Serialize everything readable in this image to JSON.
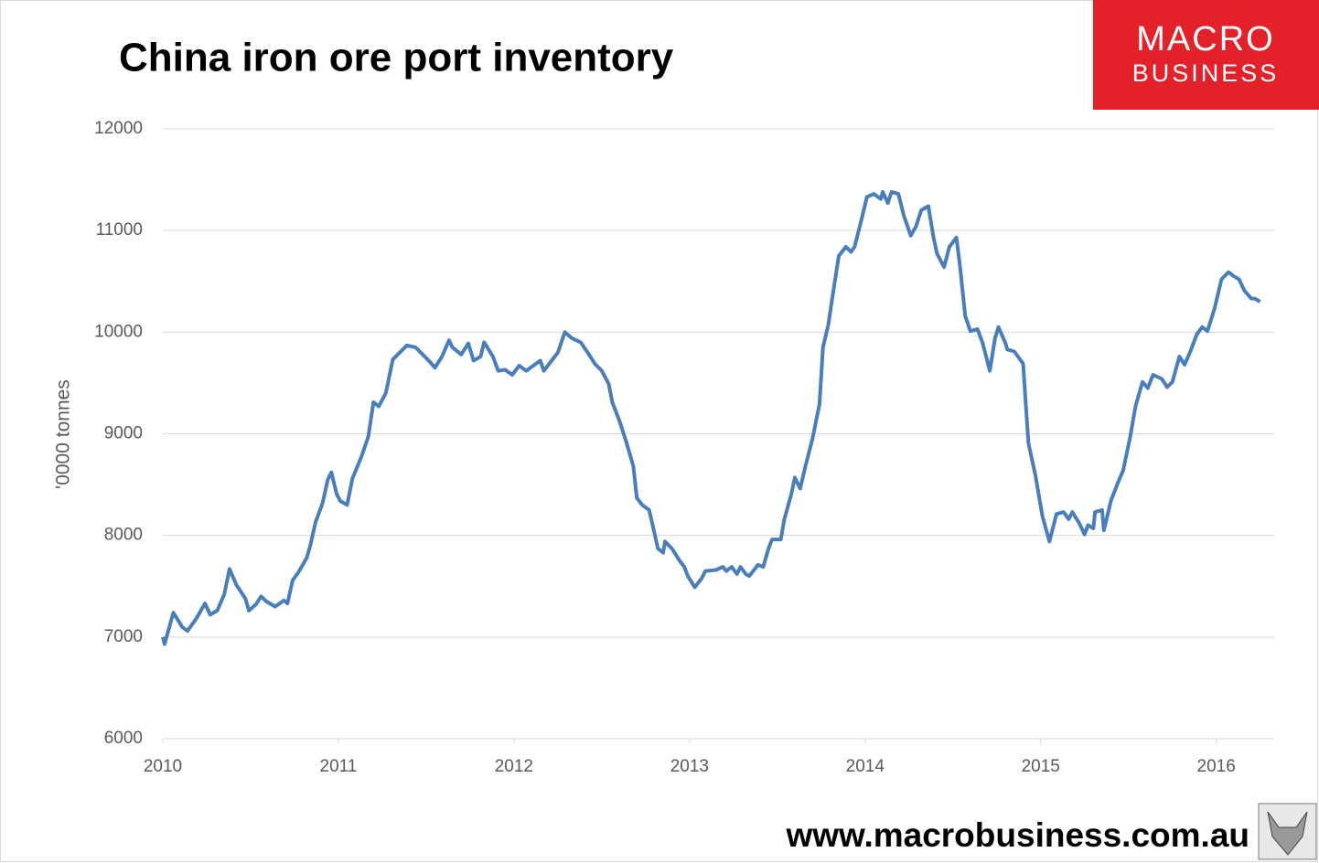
{
  "chart_data": {
    "type": "line",
    "title": "China iron ore port inventory",
    "y_label": "'0000 tonnes",
    "xlim": [
      2010,
      2016.33
    ],
    "xticks": [
      2010,
      2011,
      2012,
      2013,
      2014,
      2015,
      2016
    ],
    "ylim": [
      6000,
      12000
    ],
    "yticks": [
      6000,
      7000,
      8000,
      9000,
      10000,
      11000,
      12000
    ],
    "grid": true,
    "x": [
      2010.0,
      2010.01,
      2010.06,
      2010.11,
      2010.14,
      2010.19,
      2010.24,
      2010.27,
      2010.31,
      2010.35,
      2010.38,
      2010.42,
      2010.47,
      2010.49,
      2010.53,
      2010.56,
      2010.59,
      2010.64,
      2010.69,
      2010.71,
      2010.74,
      2010.77,
      2010.82,
      2010.84,
      2010.87,
      2010.91,
      2010.94,
      2010.96,
      2010.99,
      2011.01,
      2011.05,
      2011.08,
      2011.13,
      2011.17,
      2011.2,
      2011.23,
      2011.27,
      2011.31,
      2011.35,
      2011.39,
      2011.44,
      2011.48,
      2011.52,
      2011.55,
      2011.59,
      2011.63,
      2011.65,
      2011.7,
      2011.74,
      2011.77,
      2011.81,
      2011.83,
      2011.88,
      2011.91,
      2011.95,
      2011.99,
      2012.03,
      2012.07,
      2012.11,
      2012.15,
      2012.17,
      2012.21,
      2012.25,
      2012.29,
      2012.33,
      2012.38,
      2012.42,
      2012.46,
      2012.5,
      2012.54,
      2012.56,
      2012.6,
      2012.64,
      2012.68,
      2012.7,
      2012.73,
      2012.77,
      2012.79,
      2012.82,
      2012.85,
      2012.86,
      2012.9,
      2012.94,
      2012.97,
      2012.99,
      2013.03,
      2013.07,
      2013.09,
      2013.15,
      2013.19,
      2013.21,
      2013.24,
      2013.27,
      2013.29,
      2013.32,
      2013.34,
      2013.39,
      2013.42,
      2013.45,
      2013.47,
      2013.52,
      2013.54,
      2013.58,
      2013.6,
      2013.63,
      2013.66,
      2013.7,
      2013.74,
      2013.76,
      2013.79,
      2013.81,
      2013.85,
      2013.89,
      2013.92,
      2013.94,
      2013.98,
      2014.01,
      2014.05,
      2014.09,
      2014.1,
      2014.13,
      2014.15,
      2014.19,
      2014.22,
      2014.26,
      2014.29,
      2014.32,
      2014.36,
      2014.39,
      2014.41,
      2014.45,
      2014.48,
      2014.52,
      2014.54,
      2014.57,
      2014.6,
      2014.64,
      2014.67,
      2014.71,
      2014.74,
      2014.76,
      2014.8,
      2014.81,
      2014.85,
      2014.9,
      2014.93,
      2014.97,
      2015.01,
      2015.05,
      2015.09,
      2015.13,
      2015.16,
      2015.18,
      2015.22,
      2015.25,
      2015.27,
      2015.3,
      2015.31,
      2015.35,
      2015.36,
      2015.4,
      2015.44,
      2015.47,
      2015.51,
      2015.54,
      2015.58,
      2015.61,
      2015.64,
      2015.69,
      2015.72,
      2015.75,
      2015.79,
      2015.82,
      2015.85,
      2015.89,
      2015.92,
      2015.95,
      2015.99,
      2016.03,
      2016.07,
      2016.1,
      2016.13,
      2016.16,
      2016.2,
      2016.22,
      2016.25
    ],
    "series": [
      {
        "color": "#4a7ebb",
        "values": [
          7000,
          6930,
          7240,
          7100,
          7060,
          7180,
          7330,
          7220,
          7260,
          7420,
          7670,
          7510,
          7380,
          7260,
          7320,
          7400,
          7350,
          7300,
          7360,
          7330,
          7560,
          7630,
          7780,
          7900,
          8130,
          8320,
          8550,
          8620,
          8410,
          8340,
          8300,
          8560,
          8770,
          8970,
          9310,
          9270,
          9400,
          9730,
          9800,
          9870,
          9850,
          9780,
          9710,
          9650,
          9760,
          9920,
          9850,
          9780,
          9890,
          9720,
          9760,
          9900,
          9760,
          9620,
          9630,
          9580,
          9670,
          9620,
          9670,
          9720,
          9620,
          9710,
          9800,
          10000,
          9940,
          9900,
          9800,
          9690,
          9620,
          9490,
          9310,
          9130,
          8920,
          8680,
          8370,
          8300,
          8250,
          8100,
          7870,
          7830,
          7940,
          7870,
          7760,
          7690,
          7600,
          7490,
          7580,
          7650,
          7660,
          7690,
          7650,
          7690,
          7620,
          7690,
          7620,
          7600,
          7710,
          7690,
          7870,
          7960,
          7960,
          8160,
          8410,
          8570,
          8460,
          8680,
          8950,
          9290,
          9850,
          10070,
          10300,
          10750,
          10840,
          10790,
          10840,
          11110,
          11330,
          11360,
          11310,
          11380,
          11270,
          11380,
          11360,
          11150,
          10950,
          11040,
          11200,
          11240,
          10930,
          10770,
          10640,
          10840,
          10930,
          10660,
          10160,
          10010,
          10030,
          9890,
          9620,
          9940,
          10050,
          9890,
          9830,
          9810,
          9690,
          8910,
          8590,
          8190,
          7940,
          8210,
          8230,
          8160,
          8230,
          8120,
          8010,
          8100,
          8070,
          8230,
          8250,
          8050,
          8340,
          8520,
          8640,
          8970,
          9270,
          9510,
          9450,
          9580,
          9540,
          9460,
          9510,
          9760,
          9680,
          9800,
          9980,
          10050,
          10010,
          10230,
          10520,
          10590,
          10550,
          10520,
          10410,
          10330,
          10330,
          10300
        ]
      }
    ]
  },
  "branding": {
    "logo_top": "MACRO",
    "logo_bottom": "BUSINESS",
    "url": "www.macrobusiness.com.au"
  }
}
